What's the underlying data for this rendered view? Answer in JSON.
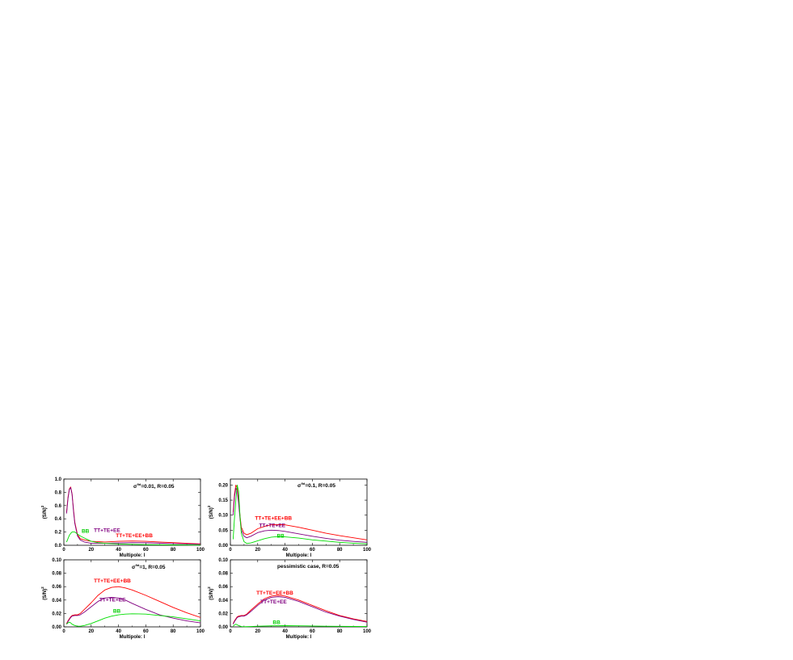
{
  "chart_data": [
    {
      "type": "line",
      "annotation": "σ_i^eq=0.01, R=0.05",
      "annotation_parts": {
        "sym": "σ",
        "sup": "fid",
        "rest": "=0.01, R=0.05"
      },
      "xlabel": "Multipole: l",
      "ylabel": "(S/N)",
      "ylabel_sup": "2",
      "xlim": [
        0,
        100
      ],
      "ylim": [
        0,
        1.0
      ],
      "xticks": [
        "0",
        "20",
        "40",
        "60",
        "80",
        "100"
      ],
      "yticks": [
        "0.0",
        "0.2",
        "0.4",
        "0.6",
        "0.8",
        "1.0"
      ],
      "series": [
        {
          "name": "TT+TE+EE+BB",
          "color": "#ff0000",
          "x": [
            2,
            3,
            4,
            5,
            6,
            7,
            8,
            10,
            12,
            15,
            20,
            30,
            40,
            50,
            60,
            70,
            80,
            90,
            100
          ],
          "y": [
            0.5,
            0.72,
            0.85,
            0.88,
            0.78,
            0.55,
            0.35,
            0.16,
            0.1,
            0.08,
            0.06,
            0.05,
            0.06,
            0.065,
            0.06,
            0.05,
            0.04,
            0.03,
            0.02
          ]
        },
        {
          "name": "TT+TE+EE",
          "color": "#800080",
          "x": [
            2,
            3,
            4,
            5,
            6,
            7,
            8,
            10,
            12,
            15,
            20,
            30,
            40,
            50,
            60,
            70,
            80,
            90,
            100
          ],
          "y": [
            0.48,
            0.7,
            0.84,
            0.87,
            0.77,
            0.53,
            0.33,
            0.14,
            0.08,
            0.05,
            0.03,
            0.03,
            0.035,
            0.04,
            0.038,
            0.032,
            0.025,
            0.02,
            0.015
          ]
        },
        {
          "name": "BB",
          "color": "#00dd00",
          "x": [
            2,
            3,
            4,
            5,
            6,
            8,
            10,
            12,
            15,
            18,
            20,
            25,
            30,
            40,
            50,
            60,
            70,
            80,
            90,
            100
          ],
          "y": [
            0.05,
            0.1,
            0.15,
            0.18,
            0.2,
            0.2,
            0.17,
            0.14,
            0.11,
            0.08,
            0.06,
            0.04,
            0.03,
            0.02,
            0.015,
            0.01,
            0.008,
            0.006,
            0.005,
            0.004
          ]
        }
      ],
      "series_labels": [
        {
          "text": "BB",
          "color": "#00cc00",
          "x": 13,
          "y": 0.19
        },
        {
          "text": "TT+TE+EE",
          "color": "#800080",
          "x": 22,
          "y": 0.2
        },
        {
          "text": "TT+TE+EE+BB",
          "color": "#ff0000",
          "x": 38,
          "y": 0.12
        }
      ]
    },
    {
      "type": "line",
      "annotation": "σ_i^eq=0.1, R=0.05",
      "annotation_parts": {
        "sym": "σ",
        "sup": "fid",
        "rest": "=0.1, R=0.05"
      },
      "xlabel": "Multipole: l",
      "ylabel": "(S/N)",
      "ylabel_sup": "2",
      "xlim": [
        0,
        100
      ],
      "ylim": [
        0,
        0.22
      ],
      "xticks": [
        "0",
        "20",
        "40",
        "60",
        "80",
        "100"
      ],
      "yticks": [
        "0.00",
        "0.05",
        "0.10",
        "0.15",
        "0.20"
      ],
      "series": [
        {
          "name": "TT+TE+EE+BB",
          "color": "#ff0000",
          "x": [
            2,
            3,
            4,
            5,
            6,
            7,
            8,
            10,
            12,
            15,
            20,
            25,
            30,
            35,
            40,
            50,
            60,
            70,
            80,
            90,
            100
          ],
          "y": [
            0.11,
            0.17,
            0.2,
            0.19,
            0.15,
            0.1,
            0.06,
            0.04,
            0.035,
            0.04,
            0.055,
            0.063,
            0.068,
            0.069,
            0.068,
            0.06,
            0.05,
            0.04,
            0.032,
            0.025,
            0.018
          ]
        },
        {
          "name": "TT+TE+EE",
          "color": "#800080",
          "x": [
            2,
            3,
            4,
            5,
            6,
            7,
            8,
            10,
            12,
            15,
            20,
            25,
            30,
            35,
            40,
            50,
            60,
            70,
            80,
            90,
            100
          ],
          "y": [
            0.1,
            0.16,
            0.19,
            0.18,
            0.14,
            0.09,
            0.05,
            0.03,
            0.025,
            0.03,
            0.042,
            0.048,
            0.05,
            0.049,
            0.046,
            0.038,
            0.03,
            0.023,
            0.017,
            0.013,
            0.01
          ]
        },
        {
          "name": "BB",
          "color": "#00dd00",
          "x": [
            2,
            3,
            4,
            5,
            6,
            7,
            8,
            10,
            12,
            15,
            20,
            25,
            30,
            35,
            40,
            50,
            60,
            70,
            80,
            90,
            100
          ],
          "y": [
            0.02,
            0.09,
            0.15,
            0.2,
            0.18,
            0.1,
            0.04,
            0.012,
            0.006,
            0.008,
            0.015,
            0.022,
            0.027,
            0.029,
            0.028,
            0.024,
            0.018,
            0.014,
            0.01,
            0.007,
            0.005
          ]
        }
      ],
      "series_labels": [
        {
          "text": "TT+TE+EE+BB",
          "color": "#ff0000",
          "x": 18,
          "y": 0.085
        },
        {
          "text": "TT+TE+EE",
          "color": "#800080",
          "x": 21,
          "y": 0.061
        },
        {
          "text": "BB",
          "color": "#00cc00",
          "x": 34,
          "y": 0.025
        }
      ]
    },
    {
      "type": "line",
      "annotation": "σ_i^eq=1, R=0.05",
      "annotation_parts": {
        "sym": "σ",
        "sup": "fid",
        "rest": "=1, R=0.05"
      },
      "xlabel": "Multipole: l",
      "ylabel": "(S/N)",
      "ylabel_sup": "2",
      "xlim": [
        0,
        100
      ],
      "ylim": [
        0,
        0.1
      ],
      "xticks": [
        "0",
        "20",
        "40",
        "60",
        "80",
        "100"
      ],
      "yticks": [
        "0.00",
        "0.02",
        "0.04",
        "0.06",
        "0.08",
        "0.10"
      ],
      "series": [
        {
          "name": "TT+TE+EE+BB",
          "color": "#ff0000",
          "x": [
            2,
            3,
            4,
            5,
            6,
            8,
            10,
            12,
            15,
            20,
            25,
            30,
            35,
            40,
            45,
            50,
            60,
            70,
            80,
            90,
            100
          ],
          "y": [
            0.005,
            0.009,
            0.012,
            0.015,
            0.017,
            0.018,
            0.018,
            0.02,
            0.026,
            0.036,
            0.047,
            0.055,
            0.059,
            0.06,
            0.058,
            0.055,
            0.047,
            0.038,
            0.029,
            0.021,
            0.014
          ]
        },
        {
          "name": "TT+TE+EE",
          "color": "#800080",
          "x": [
            2,
            3,
            4,
            5,
            6,
            8,
            10,
            12,
            15,
            20,
            25,
            30,
            35,
            40,
            45,
            50,
            60,
            70,
            80,
            90,
            100
          ],
          "y": [
            0.004,
            0.008,
            0.011,
            0.014,
            0.016,
            0.017,
            0.017,
            0.018,
            0.022,
            0.03,
            0.038,
            0.043,
            0.044,
            0.043,
            0.04,
            0.035,
            0.026,
            0.018,
            0.013,
            0.009,
            0.006
          ]
        },
        {
          "name": "BB",
          "color": "#00dd00",
          "x": [
            2,
            3,
            4,
            5,
            6,
            8,
            10,
            12,
            15,
            20,
            25,
            30,
            35,
            40,
            45,
            50,
            55,
            60,
            70,
            80,
            90,
            100
          ],
          "y": [
            0.004,
            0.006,
            0.007,
            0.006,
            0.004,
            0.002,
            0.001,
            0.001,
            0.002,
            0.005,
            0.009,
            0.013,
            0.016,
            0.018,
            0.019,
            0.0195,
            0.0193,
            0.019,
            0.017,
            0.015,
            0.012,
            0.009
          ]
        }
      ],
      "series_labels": [
        {
          "text": "TT+TE+EE+BB",
          "color": "#ff0000",
          "x": 22,
          "y": 0.066
        },
        {
          "text": "TT+TE+EE",
          "color": "#800080",
          "x": 26,
          "y": 0.038
        },
        {
          "text": "BB",
          "color": "#00cc00",
          "x": 36,
          "y": 0.021
        }
      ]
    },
    {
      "type": "line",
      "annotation": "pessimistic case, R=0.05",
      "xlabel": "Multipole: l",
      "ylabel": "(S/N)",
      "ylabel_sup": "2",
      "xlim": [
        0,
        100
      ],
      "ylim": [
        0,
        0.1
      ],
      "xticks": [
        "0",
        "20",
        "40",
        "60",
        "80",
        "100"
      ],
      "yticks": [
        "0.00",
        "0.02",
        "0.04",
        "0.06",
        "0.08",
        "0.10"
      ],
      "series": [
        {
          "name": "TT+TE+EE+BB",
          "color": "#ff0000",
          "x": [
            2,
            3,
            4,
            5,
            6,
            8,
            10,
            12,
            15,
            20,
            25,
            30,
            35,
            40,
            45,
            50,
            60,
            70,
            80,
            90,
            100
          ],
          "y": [
            0.005,
            0.009,
            0.012,
            0.015,
            0.016,
            0.017,
            0.017,
            0.019,
            0.025,
            0.034,
            0.042,
            0.046,
            0.047,
            0.046,
            0.043,
            0.04,
            0.032,
            0.024,
            0.017,
            0.012,
            0.008
          ]
        },
        {
          "name": "TT+TE+EE",
          "color": "#800080",
          "x": [
            2,
            3,
            4,
            5,
            6,
            8,
            10,
            12,
            15,
            20,
            25,
            30,
            35,
            40,
            45,
            50,
            60,
            70,
            80,
            90,
            100
          ],
          "y": [
            0.004,
            0.008,
            0.011,
            0.014,
            0.015,
            0.016,
            0.016,
            0.018,
            0.023,
            0.032,
            0.04,
            0.044,
            0.045,
            0.044,
            0.041,
            0.038,
            0.03,
            0.022,
            0.016,
            0.011,
            0.007
          ]
        },
        {
          "name": "BB",
          "color": "#00dd00",
          "x": [
            2,
            3,
            4,
            5,
            6,
            8,
            10,
            12,
            15,
            20,
            30,
            40,
            50,
            60,
            70,
            80,
            90,
            100
          ],
          "y": [
            0.001,
            0.003,
            0.004,
            0.003,
            0.002,
            0.0005,
            0.0002,
            0.0003,
            0.0005,
            0.001,
            0.0015,
            0.0018,
            0.0016,
            0.0013,
            0.001,
            0.0008,
            0.0006,
            0.0005
          ]
        }
      ],
      "series_labels": [
        {
          "text": "TT+TE+EE+BB",
          "color": "#ff0000",
          "x": 19,
          "y": 0.048
        },
        {
          "text": "TT+TE+EE",
          "color": "#800080",
          "x": 22,
          "y": 0.035
        },
        {
          "text": "BB",
          "color": "#00cc00",
          "x": 31,
          "y": 0.004
        }
      ]
    }
  ]
}
